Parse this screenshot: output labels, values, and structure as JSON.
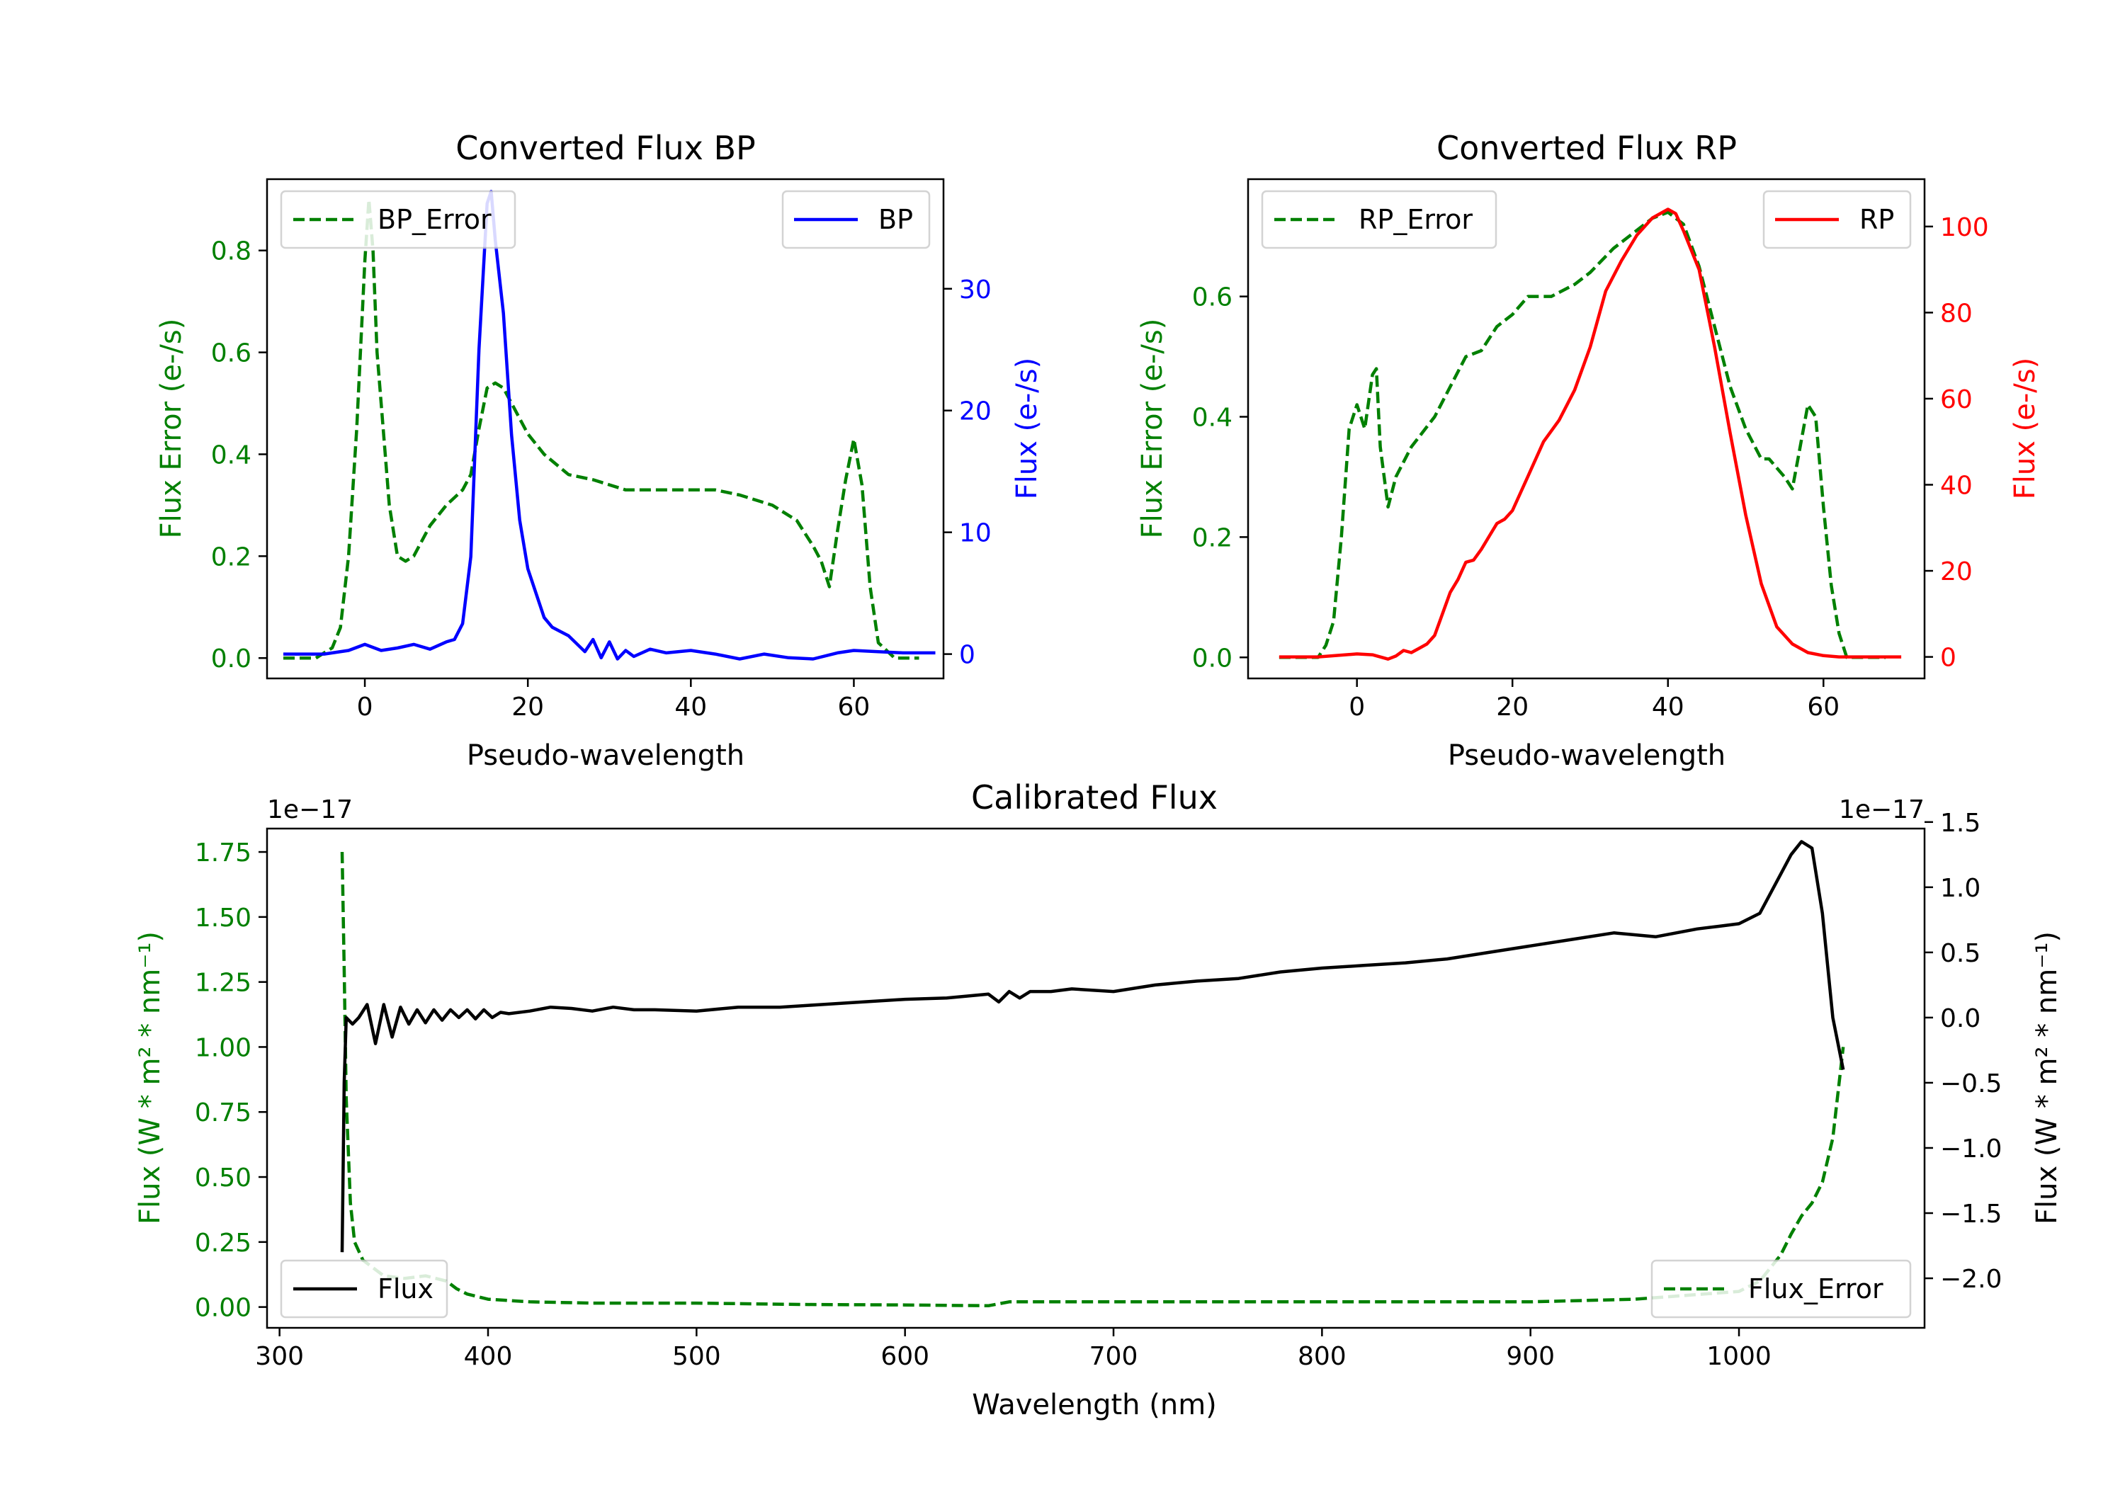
{
  "colors": {
    "bp": "#0000ff",
    "rp": "#ff0000",
    "error": "#008000",
    "flux": "#000000"
  },
  "chart_data": [
    {
      "type": "line",
      "id": "bp",
      "title": "Converted Flux BP",
      "xlabel": "Pseudo-wavelength",
      "ylabel_left": "Flux Error (e-/s)",
      "ylabel_right": "Flux (e-/s)",
      "xlim": [
        -12,
        71
      ],
      "ylim_left": [
        -0.04,
        0.94
      ],
      "ylim_right": [
        -2,
        39
      ],
      "xticks": [
        0,
        20,
        40,
        60
      ],
      "xtick_labels": [
        "0",
        "20",
        "40",
        "60"
      ],
      "yticks_left": [
        0.0,
        0.2,
        0.4,
        0.6,
        0.8
      ],
      "ytick_labels_left": [
        "0.0",
        "0.2",
        "0.4",
        "0.6",
        "0.8"
      ],
      "yticks_right": [
        0,
        10,
        20,
        30
      ],
      "ytick_labels_right": [
        "0",
        "10",
        "20",
        "30"
      ],
      "legend_left": "BP_Error",
      "legend_right": "BP",
      "error_series": {
        "name": "BP_Error",
        "x": [
          -10,
          -6,
          -4,
          -3,
          -2,
          -1,
          0,
          0.5,
          1,
          1.5,
          2,
          3,
          4,
          5,
          6,
          8,
          10,
          12,
          13,
          14,
          15,
          16,
          17,
          18,
          20,
          22,
          25,
          28,
          30,
          32,
          35,
          38,
          40,
          43,
          46,
          50,
          53,
          55,
          56,
          57,
          58,
          59,
          60,
          61,
          62,
          63,
          65,
          68
        ],
        "y": [
          0.0,
          0.0,
          0.02,
          0.06,
          0.2,
          0.45,
          0.78,
          0.9,
          0.8,
          0.6,
          0.5,
          0.3,
          0.2,
          0.19,
          0.2,
          0.26,
          0.3,
          0.33,
          0.36,
          0.45,
          0.53,
          0.54,
          0.53,
          0.5,
          0.44,
          0.4,
          0.36,
          0.35,
          0.34,
          0.33,
          0.33,
          0.33,
          0.33,
          0.33,
          0.32,
          0.3,
          0.27,
          0.22,
          0.19,
          0.14,
          0.25,
          0.35,
          0.43,
          0.34,
          0.14,
          0.03,
          0.0,
          0.0
        ]
      },
      "flux_series": {
        "name": "BP",
        "x": [
          -10,
          -5,
          -2,
          0,
          2,
          4,
          6,
          8,
          10,
          11,
          12,
          13,
          14,
          15,
          15.5,
          16,
          17,
          18,
          19,
          20,
          21,
          22,
          23,
          25,
          27,
          28,
          29,
          30,
          31,
          32,
          33,
          35,
          37,
          40,
          43,
          46,
          49,
          52,
          55,
          58,
          60,
          63,
          66,
          70
        ],
        "y": [
          0,
          0,
          0.3,
          0.8,
          0.3,
          0.5,
          0.8,
          0.4,
          1,
          1.2,
          2.5,
          8,
          25,
          37,
          38,
          34,
          28,
          18,
          11,
          7,
          5,
          3,
          2.2,
          1.5,
          0.2,
          1.2,
          -0.3,
          1.0,
          -0.4,
          0.3,
          -0.2,
          0.4,
          0.1,
          0.3,
          0,
          -0.4,
          0,
          -0.3,
          -0.4,
          0.1,
          0.3,
          0.2,
          0.1,
          0.1
        ]
      }
    },
    {
      "type": "line",
      "id": "rp",
      "title": "Converted Flux RP",
      "xlabel": "Pseudo-wavelength",
      "ylabel_left": "Flux Error (e-/s)",
      "ylabel_right": "Flux (e-/s)",
      "xlim": [
        -14,
        73
      ],
      "ylim_left": [
        -0.035,
        0.795
      ],
      "ylim_right": [
        -5,
        111
      ],
      "xticks": [
        0,
        20,
        40,
        60
      ],
      "xtick_labels": [
        "0",
        "20",
        "40",
        "60"
      ],
      "yticks_left": [
        0.0,
        0.2,
        0.4,
        0.6
      ],
      "ytick_labels_left": [
        "0.0",
        "0.2",
        "0.4",
        "0.6"
      ],
      "yticks_right": [
        0,
        20,
        40,
        60,
        80,
        100
      ],
      "ytick_labels_right": [
        "0",
        "20",
        "40",
        "60",
        "80",
        "100"
      ],
      "legend_left": "RP_Error",
      "legend_right": "RP",
      "error_series": {
        "name": "RP_Error",
        "x": [
          -10,
          -5,
          -4,
          -3,
          -2,
          -1,
          0,
          1,
          2,
          2.5,
          3,
          4,
          5,
          7,
          10,
          12,
          14,
          16,
          18,
          20,
          22,
          25,
          28,
          30,
          33,
          36,
          38,
          40,
          42,
          44,
          46,
          48,
          50,
          52,
          53,
          55,
          56,
          57,
          58,
          59,
          60,
          61,
          62,
          63,
          65,
          68
        ],
        "y": [
          0.0,
          0.0,
          0.02,
          0.06,
          0.2,
          0.38,
          0.42,
          0.38,
          0.47,
          0.48,
          0.35,
          0.25,
          0.3,
          0.35,
          0.4,
          0.45,
          0.5,
          0.51,
          0.55,
          0.57,
          0.6,
          0.6,
          0.62,
          0.64,
          0.68,
          0.71,
          0.73,
          0.74,
          0.72,
          0.65,
          0.55,
          0.45,
          0.38,
          0.33,
          0.33,
          0.3,
          0.28,
          0.35,
          0.42,
          0.4,
          0.25,
          0.12,
          0.04,
          0.0,
          0.0,
          0.0
        ]
      },
      "flux_series": {
        "name": "RP",
        "x": [
          -10,
          -5,
          0,
          2,
          4,
          5,
          6,
          7,
          8,
          9,
          10,
          11,
          12,
          13,
          14,
          15,
          16,
          17,
          18,
          19,
          20,
          22,
          24,
          26,
          28,
          30,
          32,
          34,
          36,
          38,
          39,
          40,
          41,
          42,
          44,
          46,
          48,
          50,
          52,
          54,
          56,
          58,
          60,
          62,
          65,
          70
        ],
        "y": [
          0,
          0,
          0.7,
          0.5,
          -0.5,
          0.2,
          1.5,
          1.0,
          2.0,
          3.0,
          5,
          10,
          15,
          18,
          22,
          22.5,
          25,
          28,
          31,
          32,
          34,
          42,
          50,
          55,
          62,
          72,
          85,
          92,
          98,
          102,
          103,
          104,
          103,
          99,
          90,
          72,
          52,
          33,
          17,
          7,
          3,
          1,
          0.3,
          0,
          0,
          0
        ]
      }
    },
    {
      "type": "line",
      "id": "calibrated",
      "title": "Calibrated Flux",
      "xlabel": "Wavelength (nm)",
      "ylabel_left": "Flux (W * m² * nm⁻¹)",
      "ylabel_right": "Flux (W * m² * nm⁻¹)",
      "offset_left": "1e−17",
      "offset_right": "1e−17",
      "xlim": [
        294,
        1089
      ],
      "ylim_left": [
        -0.08,
        1.84
      ],
      "ylim_right": [
        -2.38,
        1.45
      ],
      "xticks": [
        300,
        400,
        500,
        600,
        700,
        800,
        900,
        1000
      ],
      "xtick_labels": [
        "300",
        "400",
        "500",
        "600",
        "700",
        "800",
        "900",
        "1000"
      ],
      "yticks_left": [
        0.0,
        0.25,
        0.5,
        0.75,
        1.0,
        1.25,
        1.5,
        1.75
      ],
      "ytick_labels_left": [
        "0.00",
        "0.25",
        "0.50",
        "0.75",
        "1.00",
        "1.25",
        "1.50",
        "1.75"
      ],
      "yticks_right": [
        -2.0,
        -1.5,
        -1.0,
        -0.5,
        0.0,
        0.5,
        1.0,
        1.5
      ],
      "ytick_labels_right": [
        "−2.0",
        "−1.5",
        "−1.0",
        "−0.5",
        "0.0",
        "0.5",
        "1.0",
        "1.5"
      ],
      "legend_left": "Flux",
      "legend_right": "Flux_Error",
      "error_series": {
        "name": "Flux_Error",
        "x": [
          330,
          331,
          332,
          334,
          336,
          340,
          345,
          350,
          360,
          370,
          380,
          385,
          390,
          400,
          420,
          450,
          500,
          550,
          600,
          640,
          650,
          700,
          800,
          900,
          950,
          1000,
          1010,
          1020,
          1025,
          1030,
          1035,
          1040,
          1045,
          1050
        ],
        "y": [
          1.75,
          1.3,
          0.8,
          0.4,
          0.25,
          0.18,
          0.15,
          0.12,
          0.11,
          0.12,
          0.1,
          0.07,
          0.05,
          0.03,
          0.02,
          0.015,
          0.015,
          0.01,
          0.008,
          0.005,
          0.02,
          0.02,
          0.02,
          0.02,
          0.03,
          0.06,
          0.1,
          0.2,
          0.28,
          0.35,
          0.4,
          0.48,
          0.65,
          1.0
        ]
      },
      "flux_series": {
        "name": "Flux",
        "x": [
          330,
          331,
          332,
          335,
          338,
          342,
          346,
          350,
          354,
          358,
          362,
          366,
          370,
          374,
          378,
          382,
          386,
          390,
          394,
          398,
          402,
          406,
          410,
          420,
          430,
          440,
          450,
          460,
          470,
          480,
          500,
          520,
          540,
          560,
          580,
          600,
          620,
          640,
          645,
          650,
          655,
          660,
          670,
          680,
          700,
          720,
          740,
          760,
          780,
          800,
          820,
          840,
          860,
          880,
          900,
          920,
          940,
          960,
          980,
          990,
          1000,
          1010,
          1020,
          1025,
          1030,
          1035,
          1040,
          1045,
          1050
        ],
        "y": [
          -1.8,
          -0.5,
          0.0,
          -0.05,
          0.0,
          0.1,
          -0.2,
          0.1,
          -0.15,
          0.08,
          -0.05,
          0.06,
          -0.04,
          0.06,
          -0.02,
          0.06,
          0.0,
          0.06,
          -0.01,
          0.06,
          0.0,
          0.04,
          0.03,
          0.05,
          0.08,
          0.07,
          0.05,
          0.08,
          0.06,
          0.06,
          0.05,
          0.08,
          0.08,
          0.1,
          0.12,
          0.14,
          0.15,
          0.18,
          0.12,
          0.2,
          0.15,
          0.2,
          0.2,
          0.22,
          0.2,
          0.25,
          0.28,
          0.3,
          0.35,
          0.38,
          0.4,
          0.42,
          0.45,
          0.5,
          0.55,
          0.6,
          0.65,
          0.62,
          0.68,
          0.7,
          0.72,
          0.8,
          1.1,
          1.25,
          1.35,
          1.3,
          0.8,
          0.0,
          -0.4
        ]
      }
    }
  ]
}
